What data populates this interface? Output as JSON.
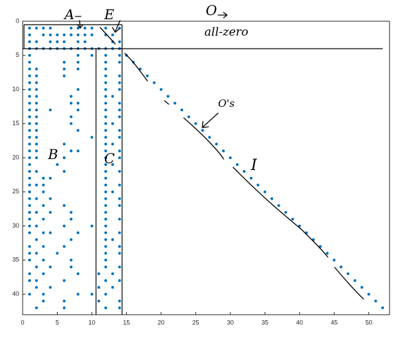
{
  "chart_data": {
    "type": "scatter",
    "color": "#0072bd",
    "xlim": [
      0,
      53
    ],
    "ylim": [
      0,
      43
    ],
    "y_reversed": true,
    "xticks": [
      0,
      5,
      10,
      15,
      20,
      25,
      30,
      35,
      40,
      45,
      50
    ],
    "yticks": [
      0,
      5,
      10,
      15,
      20,
      25,
      30,
      35,
      40
    ],
    "annotations": [
      "A",
      "E",
      "O",
      "all-zero",
      "O's",
      "B",
      "C",
      "I"
    ],
    "x": [
      1,
      2,
      3,
      4,
      7,
      8,
      9,
      10,
      12,
      14,
      1,
      3,
      4,
      5,
      6,
      7,
      8,
      9,
      10,
      12,
      13,
      1,
      2,
      4,
      5,
      6,
      8,
      9,
      13,
      14,
      1,
      2,
      3,
      4,
      5,
      6,
      7,
      8,
      9,
      10,
      11,
      12,
      13,
      14,
      1,
      8,
      10,
      12,
      14,
      15,
      1,
      6,
      8,
      12,
      14,
      16,
      1,
      2,
      6,
      8,
      12,
      17,
      1,
      2,
      6,
      12,
      14,
      18,
      1,
      2,
      12,
      14,
      19,
      1,
      2,
      8,
      12,
      14,
      20,
      1,
      2,
      7,
      12,
      13,
      21,
      1,
      2,
      7,
      8,
      12,
      14,
      22,
      1,
      2,
      4,
      8,
      12,
      14,
      23,
      1,
      2,
      7,
      12,
      14,
      24,
      1,
      2,
      7,
      12,
      13,
      25,
      1,
      2,
      8,
      12,
      14,
      26,
      1,
      2,
      10,
      12,
      14,
      27,
      1,
      2,
      6,
      12,
      13,
      28,
      1,
      2,
      7,
      8,
      12,
      14,
      29,
      1,
      2,
      6,
      12,
      14,
      30,
      1,
      5,
      12,
      13,
      31,
      1,
      2,
      6,
      12,
      14,
      32,
      1,
      3,
      4,
      12,
      33,
      1,
      2,
      3,
      12,
      14,
      34,
      1,
      3,
      12,
      13,
      35,
      1,
      2,
      4,
      12,
      14,
      36,
      1,
      3,
      6,
      12,
      14,
      37,
      1,
      2,
      4,
      7,
      12,
      38,
      1,
      3,
      7,
      12,
      14,
      39,
      1,
      2,
      6,
      10,
      12,
      40,
      1,
      3,
      4,
      8,
      12,
      14,
      41,
      2,
      7,
      12,
      13,
      42,
      1,
      3,
      6,
      12,
      14,
      43,
      1,
      2,
      5,
      12,
      14,
      44,
      1,
      3,
      7,
      12,
      45,
      2,
      4,
      7,
      12,
      14,
      46,
      1,
      3,
      8,
      11,
      13,
      47,
      1,
      2,
      6,
      12,
      14,
      48,
      2,
      4,
      11,
      13,
      49,
      1,
      3,
      8,
      10,
      12,
      50,
      3,
      6,
      11,
      14,
      51,
      2,
      6,
      12,
      14,
      52
    ],
    "values": [
      1,
      1,
      1,
      1,
      1,
      1,
      1,
      1,
      1,
      1,
      2,
      2,
      2,
      2,
      2,
      2,
      2,
      2,
      2,
      2,
      2,
      3,
      3,
      3,
      3,
      3,
      3,
      3,
      3,
      3,
      4,
      4,
      4,
      4,
      4,
      4,
      4,
      4,
      4,
      4,
      4,
      4,
      4,
      4,
      5,
      5,
      5,
      5,
      5,
      5,
      6,
      6,
      6,
      6,
      6,
      6,
      7,
      7,
      7,
      7,
      7,
      7,
      8,
      8,
      8,
      8,
      8,
      8,
      9,
      9,
      9,
      9,
      9,
      10,
      10,
      10,
      10,
      10,
      10,
      11,
      11,
      11,
      11,
      11,
      11,
      12,
      12,
      12,
      12,
      12,
      12,
      12,
      13,
      13,
      13,
      13,
      13,
      13,
      13,
      14,
      14,
      14,
      14,
      14,
      14,
      15,
      15,
      15,
      15,
      15,
      15,
      16,
      16,
      16,
      16,
      16,
      16,
      17,
      17,
      17,
      17,
      17,
      17,
      18,
      18,
      18,
      18,
      18,
      18,
      19,
      19,
      19,
      19,
      19,
      19,
      19,
      20,
      20,
      20,
      20,
      20,
      20,
      21,
      21,
      21,
      21,
      21,
      22,
      22,
      22,
      22,
      22,
      22,
      23,
      23,
      23,
      23,
      23,
      24,
      24,
      24,
      24,
      24,
      24,
      25,
      25,
      25,
      25,
      25,
      26,
      26,
      26,
      26,
      26,
      26,
      27,
      27,
      27,
      27,
      27,
      27,
      28,
      28,
      28,
      28,
      28,
      28,
      29,
      29,
      29,
      29,
      29,
      29,
      30,
      30,
      30,
      30,
      30,
      30,
      31,
      31,
      31,
      31,
      31,
      31,
      31,
      32,
      32,
      32,
      32,
      32,
      33,
      33,
      33,
      33,
      33,
      33,
      34,
      34,
      34,
      34,
      34,
      34,
      35,
      35,
      35,
      35,
      35,
      36,
      36,
      36,
      36,
      36,
      36,
      37,
      37,
      37,
      37,
      37,
      37,
      38,
      38,
      38,
      38,
      38,
      38,
      39,
      39,
      39,
      39,
      39,
      40,
      40,
      40,
      40,
      40,
      40,
      41,
      41,
      41,
      41,
      41,
      42,
      42,
      42,
      42,
      42
    ]
  }
}
